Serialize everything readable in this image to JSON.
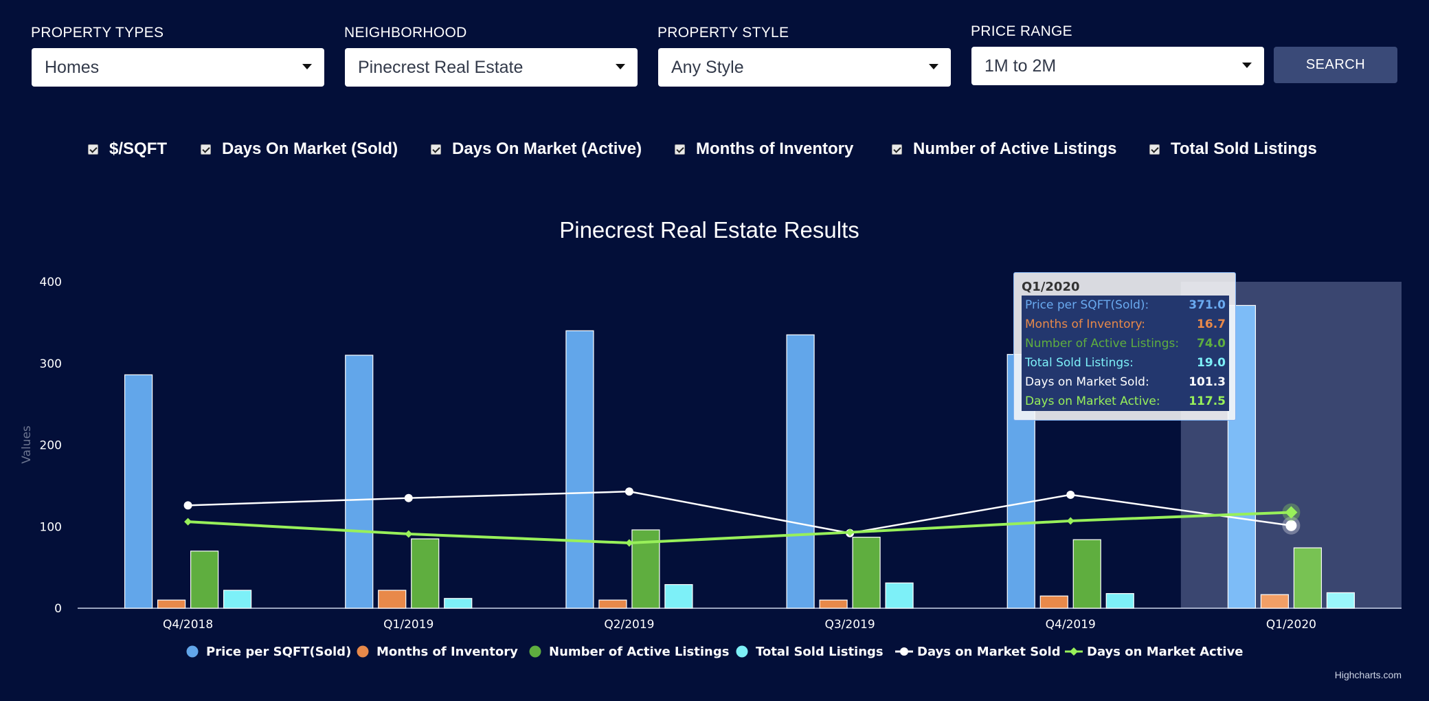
{
  "filters": {
    "property_types": {
      "label": "PROPERTY TYPES",
      "value": "Homes"
    },
    "neighborhood": {
      "label": "NEIGHBORHOOD",
      "value": "Pinecrest Real Estate"
    },
    "property_style": {
      "label": "PROPERTY STYLE",
      "value": "Any Style"
    },
    "price_range": {
      "label": "PRICE RANGE",
      "value": "1M to 2M"
    },
    "search_label": "SEARCH"
  },
  "toggles": [
    {
      "label": "$/SQFT",
      "checked": true
    },
    {
      "label": "Days On Market (Sold)",
      "checked": true
    },
    {
      "label": "Days On Market (Active)",
      "checked": true
    },
    {
      "label": "Months of Inventory",
      "checked": true
    },
    {
      "label": "Number of Active Listings",
      "checked": true
    },
    {
      "label": "Total Sold Listings",
      "checked": true
    }
  ],
  "tooltip": {
    "header": "Q1/2020",
    "rows": [
      {
        "label": "Price per SQFT(Sold):",
        "value": "371.0",
        "color": "#6aaaf0"
      },
      {
        "label": "Months of Inventory:",
        "value": "16.7",
        "color": "#e8894a"
      },
      {
        "label": "Number of Active Listings:",
        "value": "74.0",
        "color": "#5fae3f"
      },
      {
        "label": "Total Sold Listings:",
        "value": "19.0",
        "color": "#7df0f8"
      },
      {
        "label": "Days on Market Sold:",
        "value": "101.3",
        "color": "#ffffff"
      },
      {
        "label": "Days on Market Active:",
        "value": "117.5",
        "color": "#98f05a"
      }
    ]
  },
  "credits": "Highcharts.com",
  "chart_data": {
    "type": "bar",
    "title": "Pinecrest Real Estate Results",
    "xlabel": "",
    "ylabel": "Values",
    "ylim": [
      0,
      400
    ],
    "yticks": [
      0,
      100,
      200,
      300,
      400
    ],
    "categories": [
      "Q4/2018",
      "Q1/2019",
      "Q2/2019",
      "Q3/2019",
      "Q4/2019",
      "Q1/2020"
    ],
    "highlighted_category": "Q1/2020",
    "legend_position": "bottom-center",
    "series": [
      {
        "name": "Price per SQFT(Sold)",
        "type": "column",
        "color": "#62a6ea",
        "values": [
          286,
          310,
          340,
          335,
          311,
          371.0
        ]
      },
      {
        "name": "Months of Inventory",
        "type": "column",
        "color": "#e8894a",
        "values": [
          10,
          22,
          10,
          10,
          15,
          16.7
        ]
      },
      {
        "name": "Number of Active Listings",
        "type": "column",
        "color": "#5fae3f",
        "values": [
          70,
          85,
          96,
          87,
          84,
          74.0
        ]
      },
      {
        "name": "Total Sold Listings",
        "type": "column",
        "color": "#7df0f8",
        "values": [
          22,
          12,
          29,
          31,
          18,
          19.0
        ]
      },
      {
        "name": "Days on Market Sold",
        "type": "line",
        "color": "#ffffff",
        "marker": "circle",
        "values": [
          126,
          135,
          143,
          92,
          139,
          101.3
        ]
      },
      {
        "name": "Days on Market Active",
        "type": "line",
        "color": "#98f05a",
        "marker": "diamond",
        "values": [
          106,
          91,
          80,
          93,
          107,
          117.5
        ]
      }
    ]
  }
}
